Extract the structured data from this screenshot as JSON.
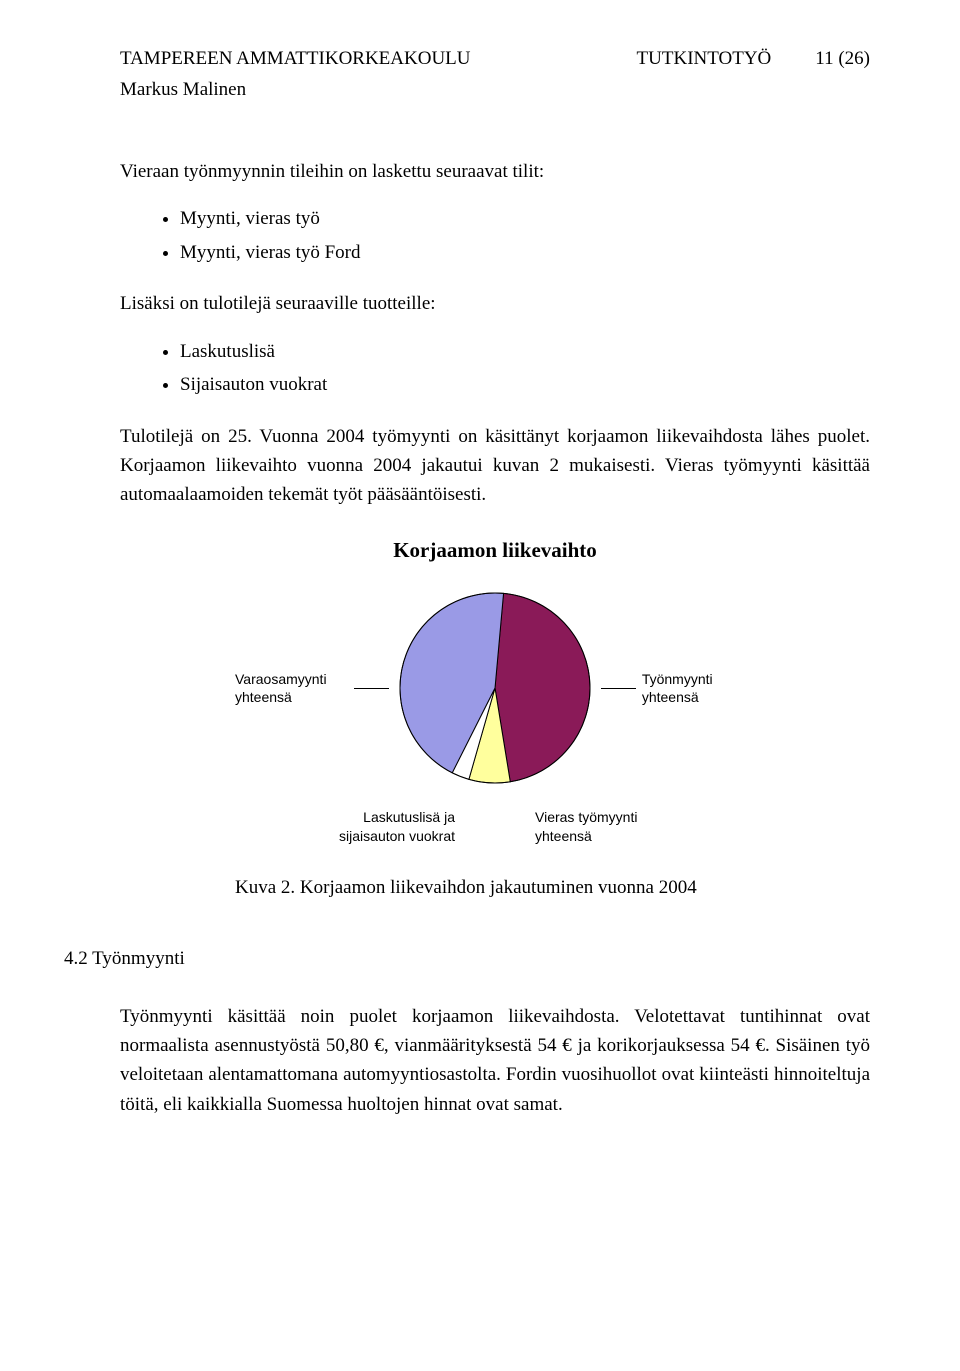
{
  "header": {
    "institution": "TAMPEREEN AMMATTIKORKEAKOULU",
    "doc_type": "TUTKINTOTYÖ",
    "page_num": "11 (26)",
    "author": "Markus Malinen"
  },
  "body": {
    "p1": "Vieraan työnmyynnin tileihin on laskettu seuraavat tilit:",
    "list1": [
      "Myynti, vieras työ",
      "Myynti, vieras työ Ford"
    ],
    "p2": "Lisäksi on tulotilejä seuraaville tuotteille:",
    "list2": [
      "Laskutuslisä",
      "Sijaisauton vuokrat"
    ],
    "p3": "Tulotilejä on 25. Vuonna 2004 työmyynti on käsittänyt korjaamon liikevaihdosta lähes puolet. Korjaamon liikevaihto vuonna 2004 jakautui kuvan 2 mukaisesti. Vieras työmyynti käsittää automaalaamoiden tekemät työt pääsääntöisesti.",
    "fig_caption": "Kuva 2. Korjaamon liikevaihdon jakautuminen vuonna 2004",
    "section_heading": "4.2 Työnmyynti",
    "p4": "Työnmyynti käsittää noin puolet korjaamon liikevaihdosta. Velotettavat tuntihinnat ovat normaalista asennustyöstä 50,80 €, vianmäärityksestä 54 € ja korikorjauksessa 54 €. Sisäinen työ veloitetaan alentamattomana automyyntiosastolta. Fordin vuosihuollot ovat kiinteästi hinnoiteltuja töitä, eli kaikkialla Suomessa huoltojen hinnat ovat samat."
  },
  "chart": {
    "type": "pie",
    "title": "Korjaamon liikevaihto",
    "background_color": "#ffffff",
    "stroke_color": "#000000",
    "title_fontsize": 21,
    "label_fontsize": 14,
    "label_font": "Arial",
    "slices": [
      {
        "label_line1": "Työnmyynti",
        "label_line2": "yhteensä",
        "value": 46,
        "color": "#8a1a58"
      },
      {
        "label_line1": "Vieras työmyynti",
        "label_line2": "yhteensä",
        "value": 7,
        "color": "#ffff9d"
      },
      {
        "label_line1": "Laskutuslisä ja",
        "label_line2": "sijaisauton vuokrat",
        "value": 3,
        "color": "#ffffff"
      },
      {
        "label_line1": "Varaosamyynti",
        "label_line2": "yhteensä",
        "value": 44,
        "color": "#9a9ae6"
      }
    ]
  }
}
